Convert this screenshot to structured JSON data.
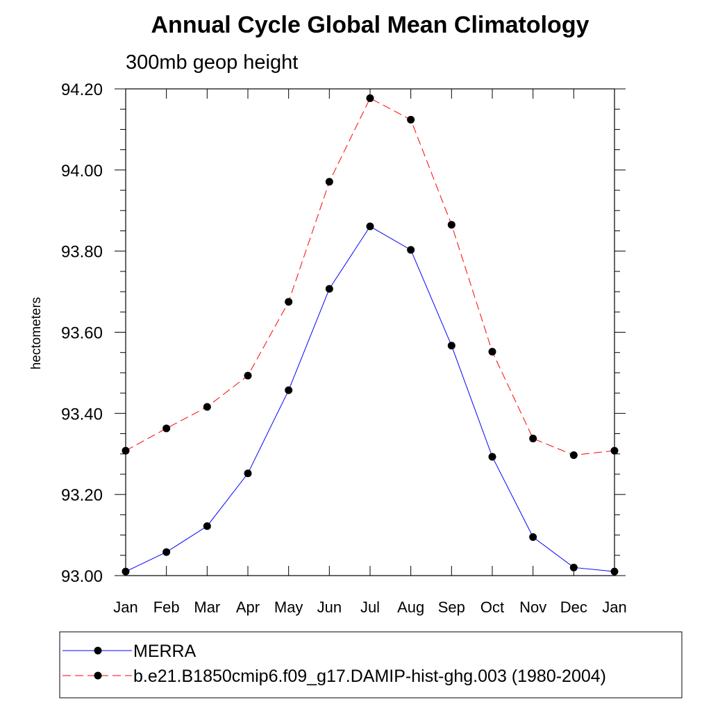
{
  "chart_data": {
    "type": "line",
    "title": "Annual Cycle Global Mean Climatology",
    "subtitle": "300mb geop height",
    "xlabel": "",
    "ylabel": "hectometers",
    "categories": [
      "Jan",
      "Feb",
      "Mar",
      "Apr",
      "May",
      "Jun",
      "Jul",
      "Aug",
      "Sep",
      "Oct",
      "Nov",
      "Dec",
      "Jan"
    ],
    "ylim": [
      93.0,
      94.2
    ],
    "yticks": [
      93.0,
      93.2,
      93.4,
      93.6,
      93.8,
      94.0,
      94.2
    ],
    "ytick_labels": [
      "93.00",
      "93.20",
      "93.40",
      "93.60",
      "93.80",
      "94.00",
      "94.20"
    ],
    "grid": false,
    "legend_position": "bottom",
    "series": [
      {
        "name": "MERRA",
        "values": [
          93.01,
          93.058,
          93.122,
          93.252,
          93.457,
          93.707,
          93.861,
          93.803,
          93.567,
          93.293,
          93.095,
          93.02,
          93.01
        ],
        "color": "#0000ff",
        "line_style": "solid",
        "marker": "filled-circle"
      },
      {
        "name": "b.e21.B1850cmip6.f09_g17.DAMIP-hist-ghg.003 (1980-2004)",
        "values": [
          93.308,
          93.363,
          93.416,
          93.493,
          93.675,
          93.971,
          94.177,
          94.124,
          93.865,
          93.552,
          93.338,
          93.297,
          93.308
        ],
        "color": "#ff0000",
        "line_style": "dashed",
        "marker": "filled-circle"
      }
    ]
  }
}
